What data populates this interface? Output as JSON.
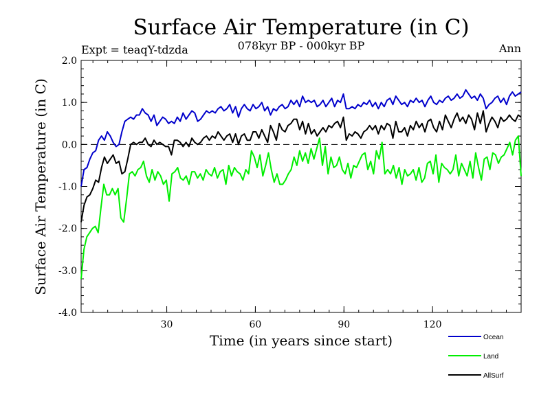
{
  "chart_data": {
    "type": "line",
    "title": "Surface Air Temperature (in C)",
    "subtitle": "078kyr BP - 000kyr BP",
    "experiment_label": "Expt = teaqY-tdzda",
    "season_label": "Ann",
    "xlabel": "Time (in years since start)",
    "ylabel": "Surface Air Temperature (in C)",
    "xlim": [
      1,
      150
    ],
    "ylim": [
      -4.0,
      2.0
    ],
    "x_ticks": [
      30,
      60,
      90,
      120
    ],
    "x_tick_labels": [
      "30",
      "60",
      "90",
      "120"
    ],
    "y_ticks": [
      -4.0,
      -3.0,
      -2.0,
      -1.0,
      0.0,
      1.0,
      2.0
    ],
    "y_tick_labels": [
      "-4.0",
      "-3.0",
      "-2.0",
      "-1.0",
      "0.0",
      "1.0",
      "2.0"
    ],
    "reference_line": 0.0,
    "legend_position": "bottom-right",
    "series": [
      {
        "name": "Ocean",
        "color": "#0000cc",
        "values": [
          -1.0,
          -0.6,
          -0.55,
          -0.35,
          -0.2,
          -0.15,
          0.1,
          0.2,
          0.1,
          0.3,
          0.2,
          0.05,
          -0.05,
          0.0,
          0.3,
          0.55,
          0.6,
          0.65,
          0.6,
          0.7,
          0.7,
          0.85,
          0.75,
          0.7,
          0.55,
          0.7,
          0.45,
          0.55,
          0.65,
          0.6,
          0.5,
          0.55,
          0.5,
          0.65,
          0.55,
          0.75,
          0.6,
          0.7,
          0.8,
          0.75,
          0.55,
          0.6,
          0.7,
          0.8,
          0.75,
          0.8,
          0.75,
          0.85,
          0.9,
          0.8,
          0.85,
          0.95,
          0.75,
          0.9,
          0.65,
          0.85,
          0.95,
          0.85,
          0.8,
          0.95,
          0.85,
          0.9,
          1.0,
          0.8,
          0.9,
          0.7,
          0.85,
          0.8,
          0.9,
          0.95,
          0.85,
          0.9,
          1.05,
          0.95,
          1.05,
          0.9,
          1.15,
          1.0,
          1.05,
          1.0,
          1.05,
          0.9,
          0.95,
          1.05,
          0.9,
          1.0,
          1.1,
          0.9,
          1.05,
          1.0,
          1.2,
          0.85,
          0.85,
          0.9,
          0.85,
          0.95,
          0.9,
          1.0,
          0.95,
          1.05,
          0.9,
          1.0,
          0.85,
          1.0,
          0.9,
          1.05,
          1.1,
          0.95,
          1.15,
          1.05,
          0.95,
          1.0,
          0.9,
          1.05,
          1.0,
          1.1,
          1.0,
          1.05,
          0.9,
          1.05,
          1.15,
          1.0,
          0.95,
          1.05,
          1.0,
          1.1,
          1.15,
          1.05,
          1.1,
          1.2,
          1.1,
          1.15,
          1.3,
          1.2,
          1.1,
          1.15,
          1.05,
          1.2,
          1.1,
          0.85,
          0.95,
          1.0,
          1.1,
          1.15,
          1.0,
          1.1,
          0.95,
          1.15,
          1.25,
          1.15,
          1.2,
          1.25
        ]
      },
      {
        "name": "Land",
        "color": "#00ee00",
        "values": [
          -3.2,
          -2.5,
          -2.2,
          -2.1,
          -2.0,
          -1.95,
          -2.1,
          -1.5,
          -0.95,
          -1.2,
          -1.2,
          -1.05,
          -1.2,
          -1.05,
          -1.75,
          -1.85,
          -1.3,
          -0.7,
          -0.65,
          -0.75,
          -0.6,
          -0.55,
          -0.4,
          -0.75,
          -0.9,
          -0.6,
          -0.85,
          -0.65,
          -0.75,
          -0.95,
          -0.85,
          -1.35,
          -0.7,
          -0.65,
          -0.55,
          -0.8,
          -0.85,
          -0.75,
          -0.95,
          -0.65,
          -0.65,
          -0.8,
          -0.7,
          -0.85,
          -0.6,
          -0.7,
          -0.75,
          -0.55,
          -0.8,
          -0.65,
          -0.6,
          -0.95,
          -0.5,
          -0.75,
          -0.55,
          -0.65,
          -0.7,
          -0.85,
          -0.6,
          -0.7,
          -0.15,
          -0.3,
          -0.55,
          -0.25,
          -0.75,
          -0.5,
          -0.2,
          -0.6,
          -0.9,
          -0.7,
          -0.95,
          -0.95,
          -0.85,
          -0.7,
          -0.6,
          -0.3,
          -0.5,
          -0.15,
          -0.4,
          -0.2,
          -0.45,
          -0.1,
          -0.35,
          -0.1,
          0.15,
          -0.5,
          -0.05,
          -0.7,
          -0.3,
          -0.55,
          -0.5,
          -0.3,
          -0.6,
          -0.7,
          -0.45,
          -0.8,
          -0.5,
          -0.55,
          -0.4,
          -0.25,
          -0.2,
          -0.6,
          -0.4,
          -0.7,
          -0.15,
          -0.35,
          0.05,
          -0.7,
          -0.6,
          -0.7,
          -0.5,
          -0.8,
          -0.55,
          -0.95,
          -0.6,
          -0.75,
          -0.7,
          -0.6,
          -0.85,
          -0.55,
          -0.9,
          -0.8,
          -0.45,
          -0.4,
          -0.7,
          -0.25,
          -0.9,
          -0.45,
          -0.55,
          -0.6,
          -0.7,
          -0.6,
          -0.25,
          -0.75,
          -0.45,
          -0.6,
          -0.75,
          -0.4,
          -0.8,
          -0.2,
          -0.55,
          -0.85,
          -0.35,
          -0.3,
          -0.6,
          -0.2,
          -0.25,
          -0.45,
          -0.3,
          -0.25,
          -0.1,
          0.05,
          -0.25,
          0.1,
          0.2,
          -0.75
        ]
      },
      {
        "name": "AllSurf",
        "color": "#000000",
        "values": [
          -1.85,
          -1.45,
          -1.25,
          -1.2,
          -1.05,
          -0.85,
          -0.9,
          -0.55,
          -0.3,
          -0.45,
          -0.35,
          -0.25,
          -0.45,
          -0.4,
          -0.7,
          -0.65,
          -0.35,
          0.0,
          0.05,
          0.0,
          0.05,
          0.05,
          0.15,
          0.0,
          -0.05,
          0.1,
          0.0,
          0.05,
          0.0,
          -0.05,
          -0.05,
          -0.25,
          0.1,
          0.1,
          0.05,
          -0.05,
          0.05,
          -0.05,
          0.15,
          0.05,
          0.0,
          0.05,
          0.15,
          0.2,
          0.1,
          0.2,
          0.15,
          0.3,
          0.2,
          0.1,
          0.2,
          0.25,
          0.05,
          0.25,
          0.0,
          0.2,
          0.25,
          0.1,
          0.1,
          0.3,
          0.3,
          0.15,
          0.35,
          0.2,
          0.05,
          0.45,
          0.3,
          0.1,
          0.5,
          0.35,
          0.3,
          0.45,
          0.5,
          0.6,
          0.6,
          0.35,
          0.55,
          0.25,
          0.5,
          0.25,
          0.35,
          0.2,
          0.3,
          0.4,
          0.3,
          0.45,
          0.4,
          0.5,
          0.55,
          0.4,
          0.65,
          0.1,
          0.25,
          0.2,
          0.3,
          0.25,
          0.15,
          0.3,
          0.35,
          0.45,
          0.35,
          0.45,
          0.25,
          0.45,
          0.35,
          0.5,
          0.45,
          0.15,
          0.55,
          0.3,
          0.3,
          0.4,
          0.2,
          0.45,
          0.35,
          0.55,
          0.4,
          0.5,
          0.3,
          0.55,
          0.6,
          0.4,
          0.3,
          0.55,
          0.35,
          0.7,
          0.55,
          0.4,
          0.6,
          0.75,
          0.55,
          0.65,
          0.5,
          0.7,
          0.6,
          0.35,
          0.75,
          0.5,
          0.8,
          0.3,
          0.5,
          0.65,
          0.55,
          0.4,
          0.65,
          0.55,
          0.6,
          0.7,
          0.6,
          0.55,
          0.7,
          0.65
        ]
      }
    ]
  }
}
